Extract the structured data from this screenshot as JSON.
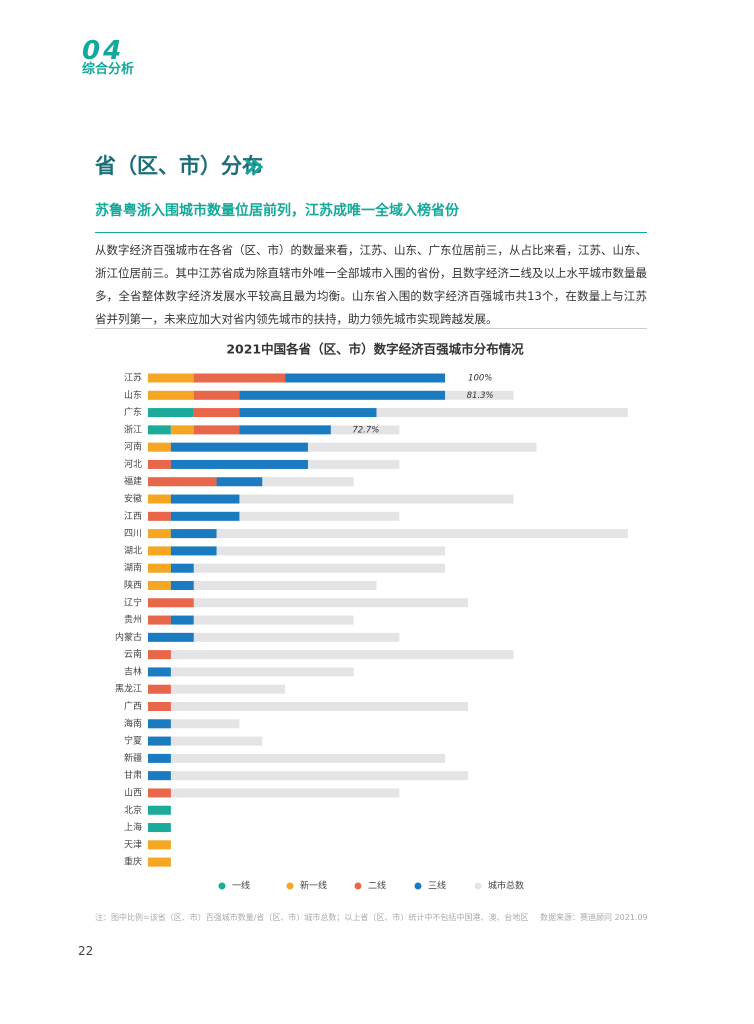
{
  "header": {
    "section": "综合分析",
    "number": "04"
  },
  "title": "省（区、市）分布",
  "subtitle": "苏鲁粤浙入围城市数量位居前列，江苏成唯一全域入榜省份",
  "paragraph": "从数字经济百强城市在各省（区、市）的数量来看，江苏、山东、广东位居前三，从占比来看，江苏、山东、浙江位居前三。其中江苏省成为除直辖市外唯一全部城市入围的省份，且数字经济二线及以上水平城市数量最多，全省整体数字经济发展水平较高且最为均衡。山东省入围的数字经济百强城市共13个，在数量上与江苏省并列第一，未来应加大对省内领先城市的扶持，助力领先城市实现跨越发展。",
  "chart_data": {
    "type": "stacked-barh",
    "title": "2021中国各省（区、市）数字经济百强城市分布情况",
    "categories": [
      "江苏",
      "山东",
      "广东",
      "浙江",
      "河南",
      "河北",
      "福建",
      "安徽",
      "江西",
      "四川",
      "湖北",
      "湖南",
      "陕西",
      "辽宁",
      "贵州",
      "内蒙古",
      "云南",
      "吉林",
      "黑龙江",
      "广西",
      "海南",
      "宁夏",
      "新疆",
      "甘肃",
      "山西",
      "北京",
      "上海",
      "天津",
      "重庆"
    ],
    "series": [
      {
        "name": "一线",
        "color": "#1aab9b",
        "values": [
          0,
          0,
          2,
          1,
          0,
          0,
          0,
          0,
          0,
          0,
          0,
          0,
          0,
          0,
          0,
          0,
          0,
          0,
          0,
          0,
          0,
          0,
          0,
          0,
          0,
          1,
          1,
          0,
          0
        ]
      },
      {
        "name": "新一线",
        "color": "#f5a623",
        "values": [
          2,
          2,
          0,
          1,
          1,
          0,
          0,
          1,
          0,
          1,
          1,
          1,
          1,
          0,
          0,
          0,
          0,
          0,
          0,
          0,
          0,
          0,
          0,
          0,
          0,
          0,
          0,
          1,
          1
        ]
      },
      {
        "name": "二线",
        "color": "#e8664a",
        "values": [
          4,
          2,
          2,
          2,
          0,
          1,
          3,
          0,
          1,
          0,
          0,
          0,
          0,
          2,
          1,
          0,
          1,
          0,
          1,
          1,
          0,
          0,
          0,
          0,
          1,
          0,
          0,
          0,
          0
        ]
      },
      {
        "name": "三线",
        "color": "#1a7bc0",
        "values": [
          7,
          9,
          6,
          4,
          6,
          6,
          2,
          3,
          3,
          2,
          2,
          1,
          1,
          0,
          1,
          2,
          0,
          1,
          0,
          0,
          1,
          1,
          1,
          1,
          0,
          0,
          0,
          0,
          0
        ]
      }
    ],
    "total": {
      "name": "城市总数",
      "color": "#e4e4e6",
      "values": [
        13,
        16,
        21,
        11,
        17,
        11,
        9,
        16,
        11,
        21,
        13,
        13,
        10,
        14,
        9,
        11,
        16,
        9,
        6,
        14,
        4,
        5,
        13,
        14,
        11,
        1,
        1,
        1,
        1
      ]
    },
    "annotations": [
      {
        "category": "江苏",
        "label": "100%"
      },
      {
        "category": "山东",
        "label": "81.3%"
      },
      {
        "category": "浙江",
        "label": "72.7%"
      }
    ]
  },
  "note": "注：图中比例=该省（区、市）百强城市数量/省（区、市）城市总数；以上省（区、市）统计中不包括中国港、澳、台地区",
  "source": "数据来源：赛迪顾问 2021.09",
  "page_number": "22"
}
